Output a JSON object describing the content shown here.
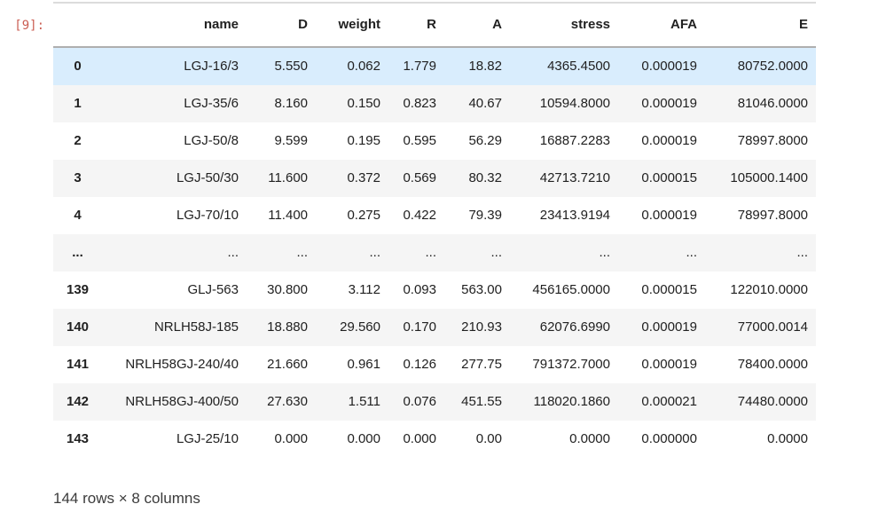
{
  "output_prompt": "[9]:",
  "table": {
    "index_header": "",
    "columns": [
      "name",
      "D",
      "weight",
      "R",
      "A",
      "stress",
      "AFA",
      "E"
    ],
    "rows": [
      {
        "index": "0",
        "cells": [
          "LGJ-16/3",
          "5.550",
          "0.062",
          "1.779",
          "18.82",
          "4365.4500",
          "0.000019",
          "80752.0000"
        ]
      },
      {
        "index": "1",
        "cells": [
          "LGJ-35/6",
          "8.160",
          "0.150",
          "0.823",
          "40.67",
          "10594.8000",
          "0.000019",
          "81046.0000"
        ]
      },
      {
        "index": "2",
        "cells": [
          "LGJ-50/8",
          "9.599",
          "0.195",
          "0.595",
          "56.29",
          "16887.2283",
          "0.000019",
          "78997.8000"
        ]
      },
      {
        "index": "3",
        "cells": [
          "LGJ-50/30",
          "11.600",
          "0.372",
          "0.569",
          "80.32",
          "42713.7210",
          "0.000015",
          "105000.1400"
        ]
      },
      {
        "index": "4",
        "cells": [
          "LGJ-70/10",
          "11.400",
          "0.275",
          "0.422",
          "79.39",
          "23413.9194",
          "0.000019",
          "78997.8000"
        ]
      },
      {
        "index": "...",
        "cells": [
          "...",
          "...",
          "...",
          "...",
          "...",
          "...",
          "...",
          "..."
        ]
      },
      {
        "index": "139",
        "cells": [
          "GLJ-563",
          "30.800",
          "3.112",
          "0.093",
          "563.00",
          "456165.0000",
          "0.000015",
          "122010.0000"
        ]
      },
      {
        "index": "140",
        "cells": [
          "NRLH58J-185",
          "18.880",
          "29.560",
          "0.170",
          "210.93",
          "62076.6990",
          "0.000019",
          "77000.0014"
        ]
      },
      {
        "index": "141",
        "cells": [
          "NRLH58GJ-240/40",
          "21.660",
          "0.961",
          "0.126",
          "277.75",
          "791372.7000",
          "0.000019",
          "78400.0000"
        ]
      },
      {
        "index": "142",
        "cells": [
          "NRLH58GJ-400/50",
          "27.630",
          "1.511",
          "0.076",
          "451.55",
          "118020.1860",
          "0.000021",
          "74480.0000"
        ]
      },
      {
        "index": "143",
        "cells": [
          "LGJ-25/10",
          "0.000",
          "0.000",
          "0.000",
          "0.00",
          "0.0000",
          "0.000000",
          "0.0000"
        ]
      }
    ],
    "hover_row": 0,
    "footer": "144 rows × 8 columns"
  },
  "colors": {
    "prompt": "#cb5e53",
    "stripe": "#f5f5f5",
    "hover": "#d9edfd",
    "border_top": "#dcdcdc",
    "border_head": "#afafaf",
    "footer_text": "#3b3b3b"
  }
}
